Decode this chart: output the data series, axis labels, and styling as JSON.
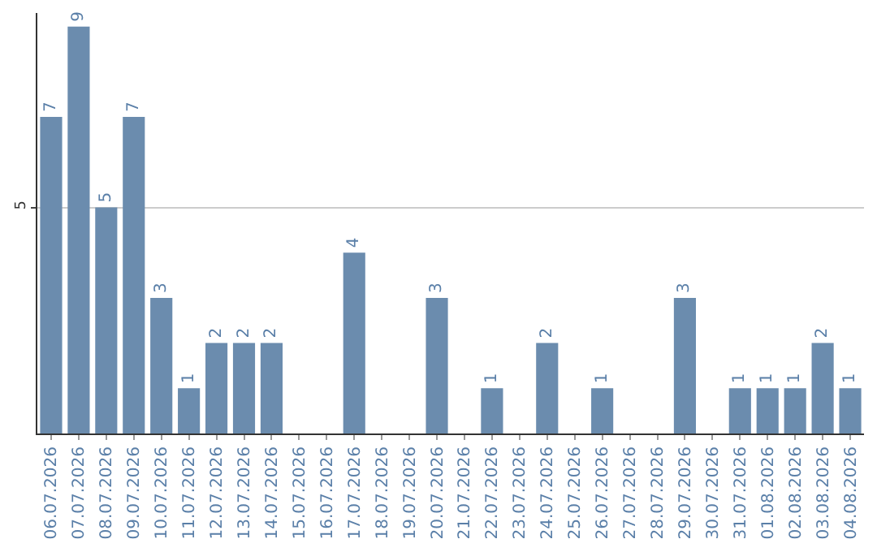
{
  "chart_data": {
    "type": "bar",
    "categories": [
      "06.07.2026",
      "07.07.2026",
      "08.07.2026",
      "09.07.2026",
      "10.07.2026",
      "11.07.2026",
      "12.07.2026",
      "13.07.2026",
      "14.07.2026",
      "15.07.2026",
      "16.07.2026",
      "17.07.2026",
      "18.07.2026",
      "19.07.2026",
      "20.07.2026",
      "21.07.2026",
      "22.07.2026",
      "23.07.2026",
      "24.07.2026",
      "25.07.2026",
      "26.07.2026",
      "27.07.2026",
      "28.07.2026",
      "29.07.2026",
      "30.07.2026",
      "31.07.2026",
      "01.08.2026",
      "02.08.2026",
      "03.08.2026",
      "04.08.2026"
    ],
    "values": [
      7,
      9,
      5,
      7,
      3,
      1,
      2,
      2,
      2,
      0,
      0,
      4,
      0,
      0,
      3,
      0,
      1,
      0,
      2,
      0,
      1,
      0,
      0,
      3,
      0,
      1,
      1,
      1,
      2,
      1
    ],
    "value_labels": [
      "7",
      "9",
      "5",
      "7",
      "3",
      "1",
      "2",
      "2",
      "2",
      null,
      null,
      "4",
      null,
      null,
      "3",
      null,
      "1",
      null,
      "2",
      null,
      "1",
      null,
      null,
      "3",
      null,
      "1",
      "1",
      "1",
      "2",
      "1"
    ],
    "color": "#6b8cae",
    "ylim": [
      0,
      9.3
    ],
    "yticks": [
      5
    ],
    "grid": "y",
    "legend": false
  }
}
